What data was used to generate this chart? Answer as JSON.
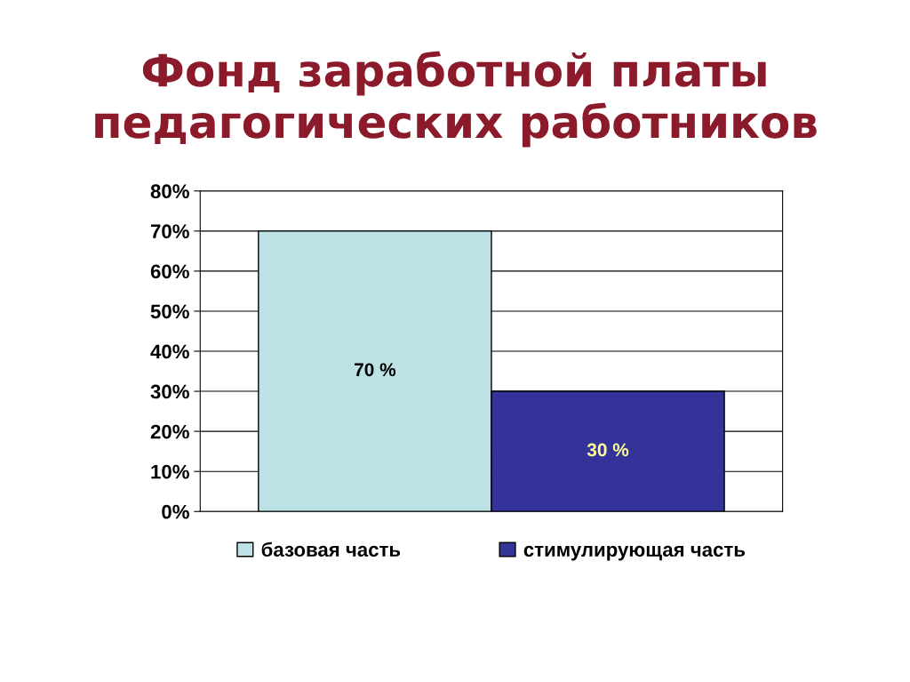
{
  "chart_data": {
    "type": "bar",
    "title": "Фонд заработной платы\nпедагогических работников",
    "categories": [
      null
    ],
    "series": [
      {
        "name": "базовая часть",
        "color": "#bde2e5",
        "values": [
          70
        ],
        "value_labels": [
          "70 %"
        ]
      },
      {
        "name": "стимулирующая часть",
        "color": "#333399",
        "values": [
          30
        ],
        "value_labels": [
          "30 %"
        ]
      }
    ],
    "ylim": [
      0,
      80
    ],
    "yticks": [
      {
        "value": 0,
        "label": "0%"
      },
      {
        "value": 10,
        "label": "10%"
      },
      {
        "value": 20,
        "label": "20%"
      },
      {
        "value": 30,
        "label": "30%"
      },
      {
        "value": 40,
        "label": "40%"
      },
      {
        "value": 50,
        "label": "50%"
      },
      {
        "value": 60,
        "label": "60%"
      },
      {
        "value": 70,
        "label": "70%"
      },
      {
        "value": 80,
        "label": "80%"
      }
    ],
    "grid": "y",
    "legend": "bottom",
    "tick_labels": "y"
  }
}
